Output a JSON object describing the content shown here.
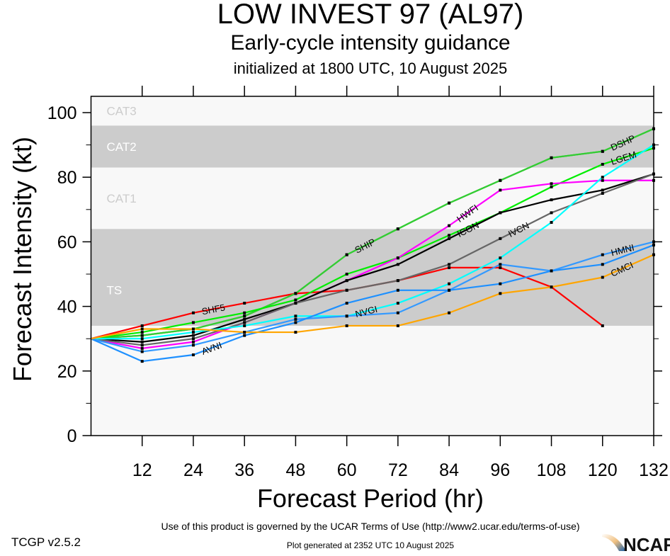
{
  "chart_data": {
    "type": "line",
    "title": "LOW INVEST 97 (AL97)",
    "subtitle": "Early-cycle intensity guidance",
    "subtitle2": "initialized at 1800 UTC, 10 August 2025",
    "xlabel": "Forecast Period (hr)",
    "ylabel": "Forecast Intensity (kt)",
    "xlim": [
      0,
      132
    ],
    "ylim": [
      0,
      100
    ],
    "x": [
      0,
      12,
      24,
      36,
      48,
      60,
      72,
      84,
      96,
      108,
      120,
      132
    ],
    "xticks": [
      12,
      24,
      36,
      48,
      60,
      72,
      84,
      96,
      108,
      120,
      132
    ],
    "yticks": [
      0,
      20,
      40,
      60,
      80,
      100
    ],
    "bands": [
      {
        "name": "TS",
        "from": 34,
        "to": 64,
        "color": "#cccccc",
        "label_color": "#ffffff"
      },
      {
        "name": "CAT1",
        "from": 64,
        "to": 83,
        "color": "#f8f8f8",
        "label_color": "#cccccc"
      },
      {
        "name": "CAT2",
        "from": 83,
        "to": 96,
        "color": "#cccccc",
        "label_color": "#ffffff"
      },
      {
        "name": "CAT3",
        "from": 96,
        "to": 100,
        "color": "#f8f8f8",
        "label_color": "#cccccc"
      }
    ],
    "series": [
      {
        "name": "SHF5",
        "color": "#ff0000",
        "label_at": 24,
        "values": [
          30,
          34,
          38,
          41,
          44,
          45,
          48,
          52,
          52,
          46,
          34,
          null
        ]
      },
      {
        "name": "DSHP",
        "color": "#33cc33",
        "label_at": 120,
        "values": [
          30,
          31,
          33,
          37,
          44,
          56,
          64,
          72,
          79,
          86,
          88,
          95
        ]
      },
      {
        "name": "SHIP",
        "color": "#33cc33",
        "label_at": 60,
        "values": [
          30,
          31,
          33,
          37,
          44,
          56,
          64,
          72,
          79,
          86,
          88,
          95
        ]
      },
      {
        "name": "LGEM",
        "color": "#00ee00",
        "label_at": 120,
        "values": [
          30,
          32,
          35,
          38,
          42,
          50,
          55,
          62,
          69,
          77,
          84,
          89
        ]
      },
      {
        "name": "HWFI",
        "color": "#ff00ff",
        "label_at": 84,
        "values": [
          30,
          27,
          29,
          35,
          41,
          48,
          55,
          65,
          76,
          78,
          79,
          79
        ]
      },
      {
        "name": "ICON",
        "color": "#000000",
        "label_at": 84,
        "values": [
          30,
          29,
          31,
          36,
          41,
          48,
          53,
          61,
          69,
          73,
          76,
          81
        ]
      },
      {
        "name": "IVCN",
        "color": "#666666",
        "label_at": 96,
        "values": [
          30,
          28,
          30,
          35,
          41,
          45,
          48,
          53,
          61,
          69,
          75,
          81
        ]
      },
      {
        "name": "NVGI",
        "color": "#00ffff",
        "label_at": 60,
        "values": [
          30,
          30,
          32,
          34,
          37,
          37,
          41,
          47,
          55,
          66,
          80,
          90
        ]
      },
      {
        "name": "HMNI",
        "color": "#3399ff",
        "label_at": 120,
        "values": [
          30,
          26,
          28,
          32,
          36,
          37,
          38,
          45,
          53,
          51,
          56,
          60
        ]
      },
      {
        "name": "AVNI",
        "color": "#1e90ff",
        "label_at": 24,
        "values": [
          30,
          23,
          25,
          31,
          35,
          41,
          45,
          45,
          47,
          51,
          53,
          59
        ]
      },
      {
        "name": "CMCI",
        "color": "#ffa500",
        "label_at": 120,
        "values": [
          30,
          33,
          33,
          32,
          32,
          34,
          34,
          38,
          44,
          46,
          49,
          56
        ]
      }
    ]
  },
  "footer": {
    "terms": "Use of this product is governed by the UCAR Terms of Use (http://www2.ucar.edu/terms-of-use)",
    "generated": "Plot generated at 2352 UTC   10 August 2025",
    "version": "TCGP v2.5.2",
    "logo": "NCAR"
  }
}
